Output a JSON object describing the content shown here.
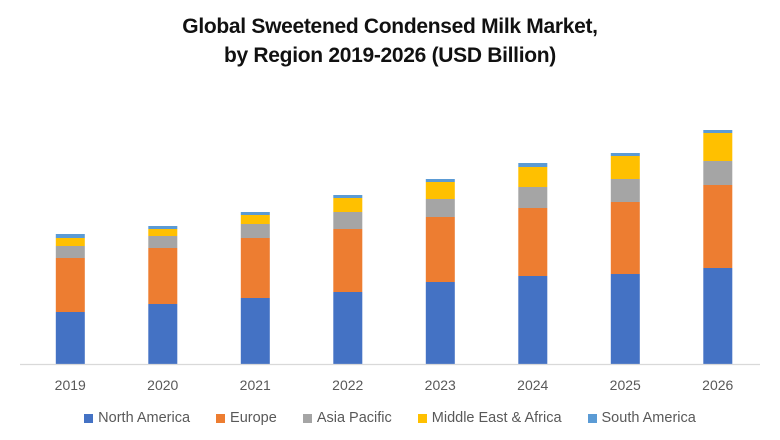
{
  "chart_data": {
    "type": "bar",
    "stacked": true,
    "title_line1": "Global Sweetened Condensed Milk Market,",
    "title_line2": "by Region 2019-2026 (USD Billion)",
    "xlabel": "",
    "ylabel": "",
    "y_axis_visible": false,
    "grid": false,
    "legend_position": "bottom",
    "ylim": [
      0,
      12
    ],
    "categories": [
      "2019",
      "2020",
      "2021",
      "2022",
      "2023",
      "2024",
      "2025",
      "2026"
    ],
    "series": [
      {
        "name": "North America",
        "color": "#4472C4",
        "values": [
          2.6,
          3.0,
          3.3,
          3.6,
          4.1,
          4.4,
          4.5,
          4.8
        ]
      },
      {
        "name": "Europe",
        "color": "#ED7D31",
        "values": [
          2.7,
          2.8,
          3.0,
          3.15,
          3.25,
          3.4,
          3.6,
          4.15
        ]
      },
      {
        "name": "Asia Pacific",
        "color": "#A5A5A5",
        "values": [
          0.6,
          0.6,
          0.7,
          0.85,
          0.9,
          1.05,
          1.15,
          1.2
        ]
      },
      {
        "name": "Middle East & Africa",
        "color": "#FFC000",
        "values": [
          0.4,
          0.35,
          0.45,
          0.7,
          0.85,
          1.0,
          1.15,
          1.4
        ]
      },
      {
        "name": "South America",
        "color": "#5B9BD5",
        "values": [
          0.2,
          0.15,
          0.15,
          0.15,
          0.15,
          0.2,
          0.15,
          0.15
        ]
      }
    ]
  }
}
